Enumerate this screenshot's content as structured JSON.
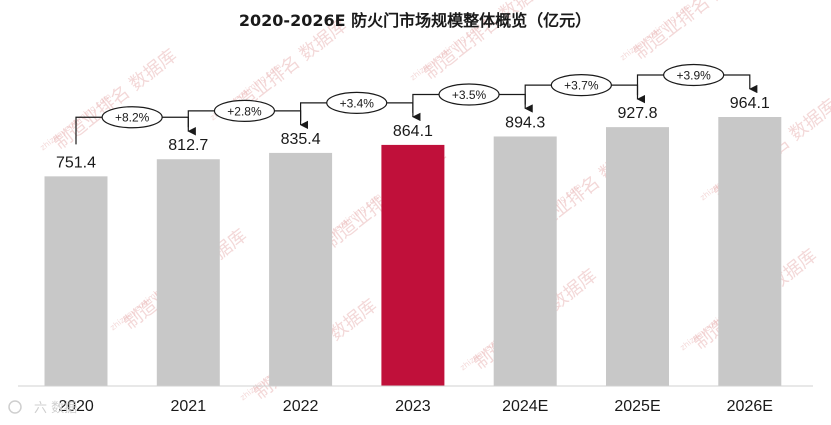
{
  "chart_data": {
    "type": "bar",
    "title": "2020-2026E 防火门市场规模整体概览（亿元）",
    "categories": [
      "2020",
      "2021",
      "2022",
      "2023",
      "2024E",
      "2025E",
      "2026E"
    ],
    "values": [
      751.4,
      812.7,
      835.4,
      864.1,
      894.3,
      927.8,
      964.1
    ],
    "value_labels": [
      "751.4",
      "812.7",
      "835.4",
      "864.1",
      "894.3",
      "927.8",
      "964.1"
    ],
    "growth_labels": [
      "+8.2%",
      "+2.8%",
      "+3.4%",
      "+3.5%",
      "+3.7%",
      "+3.9%"
    ],
    "highlight_index": 3,
    "ylim": [
      0,
      1000
    ],
    "grid": false,
    "colors": {
      "bar": "#c8c8c8",
      "highlight": "#c0103a",
      "text": "#1a1a1a",
      "watermark": "#e6a9a9"
    }
  },
  "watermark": {
    "text": "制造业排名 数据库",
    "url": "zhizaoyepaiming.com"
  },
  "logo": {
    "text": "六 数据"
  }
}
